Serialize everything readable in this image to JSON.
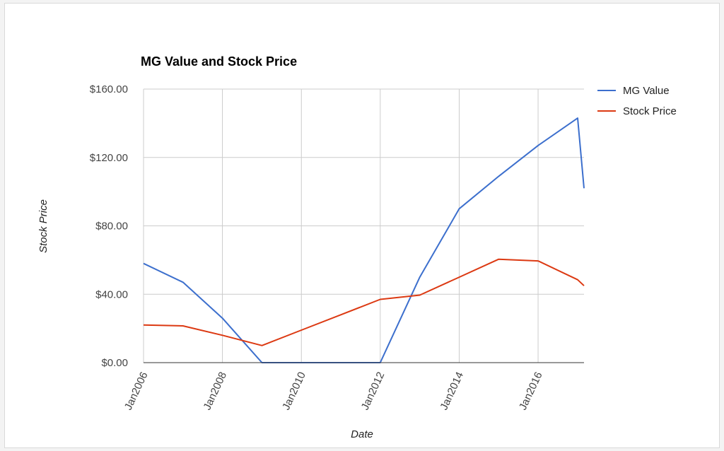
{
  "chart_data": {
    "type": "line",
    "title": "MG Value and Stock Price",
    "xlabel": "Date",
    "ylabel": "Stock Price",
    "xlim": [
      "2006-01-01",
      "2017-03-01"
    ],
    "ylim": [
      0,
      160
    ],
    "yticks": [
      0,
      40,
      80,
      120,
      160
    ],
    "ytick_labels": [
      "$0.00",
      "$40.00",
      "$80.00",
      "$120.00",
      "$160.00"
    ],
    "xticks": [
      "2006-01-01",
      "2008-01-01",
      "2010-01-01",
      "2012-01-01",
      "2014-01-01",
      "2016-01-01"
    ],
    "xtick_labels": [
      "Jan2006",
      "Jan2008",
      "Jan2010",
      "Jan2012",
      "Jan2014",
      "Jan2016"
    ],
    "grid": true,
    "legend_position": "right",
    "series": [
      {
        "name": "MG Value",
        "color": "#3c6fcd",
        "points": [
          {
            "x": "2006-01-01",
            "y": 58
          },
          {
            "x": "2007-01-01",
            "y": 47
          },
          {
            "x": "2008-01-01",
            "y": 26
          },
          {
            "x": "2009-01-01",
            "y": 0
          },
          {
            "x": "2010-01-01",
            "y": 0
          },
          {
            "x": "2011-01-01",
            "y": 0
          },
          {
            "x": "2012-01-01",
            "y": 0
          },
          {
            "x": "2013-01-01",
            "y": 50
          },
          {
            "x": "2014-01-01",
            "y": 90
          },
          {
            "x": "2015-01-01",
            "y": 109
          },
          {
            "x": "2016-01-01",
            "y": 127
          },
          {
            "x": "2017-01-01",
            "y": 143
          },
          {
            "x": "2017-03-01",
            "y": 102
          }
        ]
      },
      {
        "name": "Stock Price",
        "color": "#dc3912",
        "points": [
          {
            "x": "2006-01-01",
            "y": 22
          },
          {
            "x": "2007-01-01",
            "y": 21.5
          },
          {
            "x": "2008-01-01",
            "y": 16
          },
          {
            "x": "2009-01-01",
            "y": 10
          },
          {
            "x": "2010-01-01",
            "y": 19
          },
          {
            "x": "2011-01-01",
            "y": 28
          },
          {
            "x": "2012-01-01",
            "y": 37
          },
          {
            "x": "2013-01-01",
            "y": 39.5
          },
          {
            "x": "2014-01-01",
            "y": 50
          },
          {
            "x": "2015-01-01",
            "y": 60.5
          },
          {
            "x": "2016-01-01",
            "y": 59.5
          },
          {
            "x": "2017-01-01",
            "y": 48.5
          },
          {
            "x": "2017-03-01",
            "y": 45
          }
        ]
      }
    ]
  }
}
